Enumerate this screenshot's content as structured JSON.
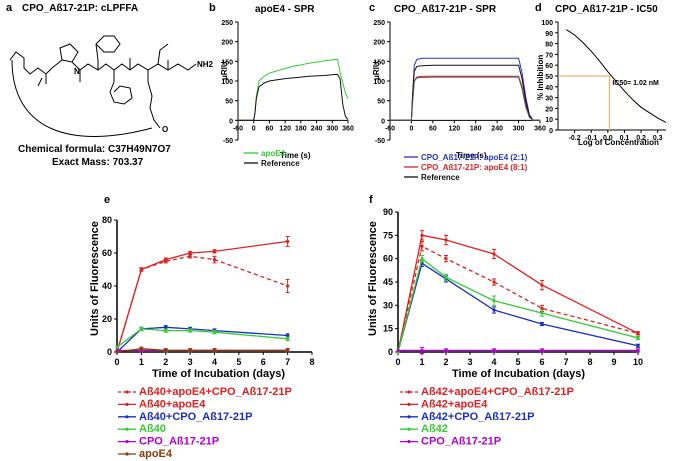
{
  "panel_labels": [
    "a",
    "b",
    "c",
    "d",
    "e",
    "f"
  ],
  "panel_a": {
    "title": "CPO_Aß17-21P: cLPFFA",
    "formula": "Chemical formula: C37H49N7O7",
    "mass": "Exact Mass: 703.37",
    "atoms": {
      "nh2": "NH2",
      "o": "O",
      "n": "N"
    }
  },
  "chart_data": [
    {
      "id": "b",
      "type": "line",
      "title": "apoE4 - SPR",
      "xlabel": "Time (s)",
      "ylabel": "μRIU",
      "xlim": [
        -60,
        360
      ],
      "ylim": [
        -50,
        250
      ],
      "xticks": [
        "-60",
        "0",
        "60",
        "120",
        "180",
        "240",
        "300",
        "360"
      ],
      "yticks": [
        "-50",
        "0",
        "50",
        "100",
        "150",
        "200",
        "250"
      ],
      "series": [
        {
          "name": "apoE4",
          "color": "#33cc33",
          "x": [
            -60,
            0,
            5,
            10,
            20,
            40,
            60,
            90,
            120,
            150,
            180,
            210,
            240,
            270,
            300,
            320,
            330,
            340,
            350,
            360
          ],
          "y": [
            0,
            0,
            20,
            60,
            100,
            112,
            120,
            126,
            132,
            137,
            141,
            145,
            148,
            151,
            154,
            155,
            122,
            95,
            70,
            55
          ]
        },
        {
          "name": "Reference",
          "color": "#111111",
          "x": [
            -60,
            0,
            5,
            10,
            20,
            40,
            60,
            90,
            120,
            150,
            180,
            210,
            240,
            270,
            300,
            320,
            330,
            340,
            350,
            360
          ],
          "y": [
            0,
            0,
            20,
            55,
            85,
            95,
            100,
            103,
            106,
            108,
            110,
            112,
            113,
            114,
            116,
            117,
            105,
            40,
            10,
            2
          ]
        }
      ]
    },
    {
      "id": "c",
      "type": "line",
      "title": "CPO_Aß17-21P - SPR",
      "xlabel": "Time (s)",
      "ylabel": "μRIU",
      "xlim": [
        -60,
        360
      ],
      "ylim": [
        -50,
        250
      ],
      "xticks": [
        "-60",
        "0",
        "60",
        "120",
        "180",
        "240",
        "300",
        "360"
      ],
      "yticks": [
        "-50",
        "0",
        "50",
        "100",
        "150",
        "200",
        "250"
      ],
      "series": [
        {
          "name": "CPO_Aß17-21P: apoE4 (2:1)",
          "color": "#2233cc",
          "x": [
            -60,
            0,
            3,
            8,
            15,
            30,
            60,
            120,
            180,
            240,
            300,
            310,
            320,
            330,
            340,
            360
          ],
          "y": [
            0,
            0,
            60,
            140,
            155,
            158,
            158,
            158,
            158,
            158,
            158,
            120,
            60,
            15,
            0,
            0
          ]
        },
        {
          "name": "CPO_Aß17-21P: apoE4 (8:1)",
          "color": "#dd2222",
          "x": [
            -60,
            0,
            3,
            8,
            15,
            30,
            60,
            120,
            180,
            240,
            300,
            310,
            320,
            330,
            340,
            360
          ],
          "y": [
            0,
            0,
            40,
            100,
            110,
            112,
            112,
            112,
            112,
            112,
            112,
            85,
            40,
            10,
            0,
            0
          ]
        },
        {
          "name": "Reference",
          "color": "#111111",
          "x": [
            -60,
            0,
            3,
            8,
            15,
            30,
            60,
            120,
            180,
            240,
            300,
            310,
            320,
            330,
            340,
            360
          ],
          "y": [
            0,
            0,
            60,
            125,
            137,
            139,
            140,
            140,
            140,
            140,
            140,
            105,
            50,
            12,
            0,
            0
          ]
        },
        {
          "name": "",
          "color": "#555555",
          "x": [
            -60,
            0,
            3,
            8,
            15,
            30,
            60,
            120,
            180,
            240,
            300,
            310,
            320,
            330,
            340,
            360
          ],
          "y": [
            0,
            0,
            45,
            100,
            108,
            109,
            110,
            110,
            110,
            110,
            110,
            80,
            35,
            8,
            0,
            0
          ]
        }
      ]
    },
    {
      "id": "d",
      "type": "line",
      "title": "CPO_Aß17-21P - IC50",
      "xlabel": "Log of Concentration",
      "ylabel": "% Inhibition",
      "xlim": [
        -0.3,
        0.35
      ],
      "ylim": [
        0,
        100
      ],
      "xticks": [
        "-0.2",
        "-0.1",
        "0.0",
        "0.1",
        "0.2",
        "0.3"
      ],
      "yticks": [
        "0",
        "10",
        "20",
        "30",
        "40",
        "50",
        "60",
        "70",
        "80",
        "90",
        "100"
      ],
      "annotation": "IC50= 1.02 nM",
      "ic50_log": 0.009,
      "series": [
        {
          "name": "fit",
          "color": "#000000",
          "x": [
            -0.25,
            -0.2,
            -0.15,
            -0.1,
            -0.05,
            0,
            0.05,
            0.1,
            0.15,
            0.2,
            0.25,
            0.3,
            0.35
          ],
          "y": [
            93,
            88,
            81,
            73,
            64,
            54,
            45,
            36,
            28,
            21,
            16,
            11,
            7
          ]
        }
      ]
    },
    {
      "id": "e",
      "type": "line",
      "title": "",
      "xlabel": "Time of Incubation (days)",
      "ylabel": "Units of Fluorescence",
      "xlim": [
        0,
        8
      ],
      "ylim": [
        0,
        80
      ],
      "xticks": [
        "0",
        "1",
        "2",
        "3",
        "4",
        "5",
        "6",
        "7",
        "8"
      ],
      "yticks": [
        "0",
        "20",
        "40",
        "60",
        "80"
      ],
      "series": [
        {
          "name": "Aß40+apoE4+CPO_Aß17-21P",
          "color": "#e02020",
          "dash": true,
          "x": [
            0,
            1,
            2,
            3,
            4,
            7
          ],
          "y": [
            0,
            50,
            55,
            58,
            56,
            40
          ],
          "err": [
            0,
            1,
            1,
            1,
            2,
            4
          ]
        },
        {
          "name": "Aß40+apoE4",
          "color": "#e02020",
          "x": [
            0,
            1,
            2,
            3,
            4,
            7
          ],
          "y": [
            0,
            50,
            56,
            60,
            61,
            67
          ],
          "err": [
            0,
            1,
            1,
            1,
            1,
            3
          ]
        },
        {
          "name": "Aß40+CPO_Aß17-21P",
          "color": "#1a2fbf",
          "x": [
            0,
            1,
            2,
            3,
            4,
            7
          ],
          "y": [
            0,
            14,
            15,
            14,
            13,
            10
          ],
          "err": [
            0,
            1,
            1,
            1,
            1,
            1
          ]
        },
        {
          "name": "Aß40",
          "color": "#33cc33",
          "x": [
            0,
            1,
            2,
            3,
            4,
            7
          ],
          "y": [
            3,
            14,
            13,
            13,
            12,
            8
          ],
          "err": [
            0,
            1,
            1,
            1,
            1,
            1
          ]
        },
        {
          "name": "CPO_Aß17-21P",
          "color": "#b000d0",
          "x": [
            0,
            1,
            2,
            3,
            4,
            7
          ],
          "y": [
            1,
            1,
            1,
            1,
            1,
            1
          ],
          "err": [
            0,
            1,
            1,
            1,
            1,
            1
          ]
        },
        {
          "name": "apoE4",
          "color": "#8b3a0a",
          "x": [
            0,
            1,
            2,
            3,
            4,
            7
          ],
          "y": [
            0,
            2,
            1,
            1,
            1,
            1
          ],
          "err": [
            0,
            1,
            1,
            1,
            1,
            1
          ]
        }
      ]
    },
    {
      "id": "f",
      "type": "line",
      "title": "",
      "xlabel": "Time of Incubation (days)",
      "ylabel": "Units of Fluorescence",
      "xlim": [
        0,
        10
      ],
      "ylim": [
        0,
        90
      ],
      "xticks": [
        "0",
        "1",
        "2",
        "3",
        "4",
        "5",
        "6",
        "7",
        "8",
        "9",
        "10"
      ],
      "yticks": [
        "0",
        "15",
        "30",
        "45",
        "60",
        "75",
        "90"
      ],
      "series": [
        {
          "name": "Aß42+apoE4+CPO_Aß17-21P",
          "color": "#e02020",
          "dash": true,
          "x": [
            0,
            1,
            2,
            4,
            6,
            10
          ],
          "y": [
            0,
            68,
            60,
            45,
            28,
            12
          ],
          "err": [
            0,
            3,
            2,
            2,
            2,
            1
          ]
        },
        {
          "name": "Aß42+apoE4",
          "color": "#e02020",
          "x": [
            0,
            1,
            2,
            4,
            6,
            10
          ],
          "y": [
            0,
            75,
            72,
            63,
            43,
            12
          ],
          "err": [
            0,
            3,
            3,
            3,
            3,
            1
          ]
        },
        {
          "name": "Aß42+CPO_Aß17-21P",
          "color": "#1a2fbf",
          "x": [
            0,
            1,
            2,
            4,
            6,
            10
          ],
          "y": [
            0,
            57,
            47,
            27,
            18,
            4
          ],
          "err": [
            0,
            2,
            2,
            2,
            1,
            1
          ]
        },
        {
          "name": "Aß42",
          "color": "#33cc33",
          "x": [
            0,
            1,
            2,
            4,
            6,
            10
          ],
          "y": [
            0,
            60,
            48,
            33,
            25,
            9
          ],
          "err": [
            0,
            2,
            2,
            3,
            2,
            1
          ]
        },
        {
          "name": "CPO_Aß17-21P",
          "color": "#b000d0",
          "x": [
            0,
            1,
            2,
            4,
            6,
            10
          ],
          "y": [
            1,
            1,
            1,
            1,
            1,
            1
          ],
          "err": [
            0,
            2,
            1,
            1,
            1,
            1
          ]
        }
      ]
    }
  ]
}
